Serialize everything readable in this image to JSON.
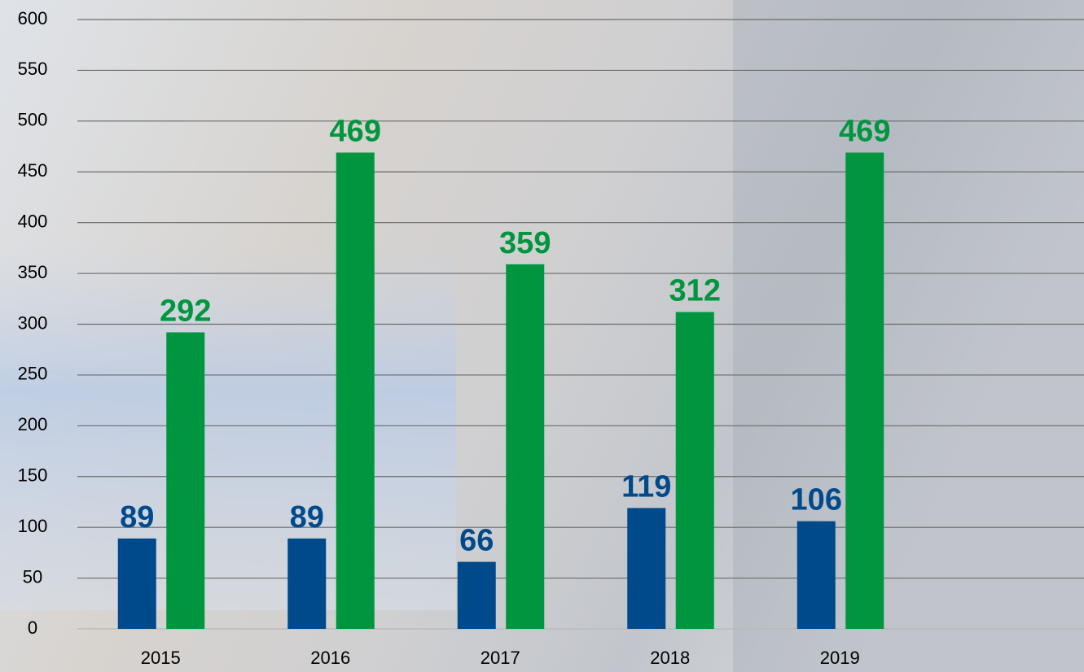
{
  "chart_data": {
    "type": "bar",
    "categories": [
      "2015",
      "2016",
      "2017",
      "2018",
      "2019"
    ],
    "series": [
      {
        "color": "#004a8c",
        "values": [
          89,
          89,
          66,
          119,
          106
        ]
      },
      {
        "color": "#009640",
        "values": [
          292,
          469,
          359,
          312,
          469
        ]
      }
    ],
    "ylim": [
      0,
      600
    ],
    "yticks": [
      0,
      50,
      100,
      150,
      200,
      250,
      300,
      350,
      400,
      450,
      500,
      550,
      600
    ],
    "grid": true
  }
}
